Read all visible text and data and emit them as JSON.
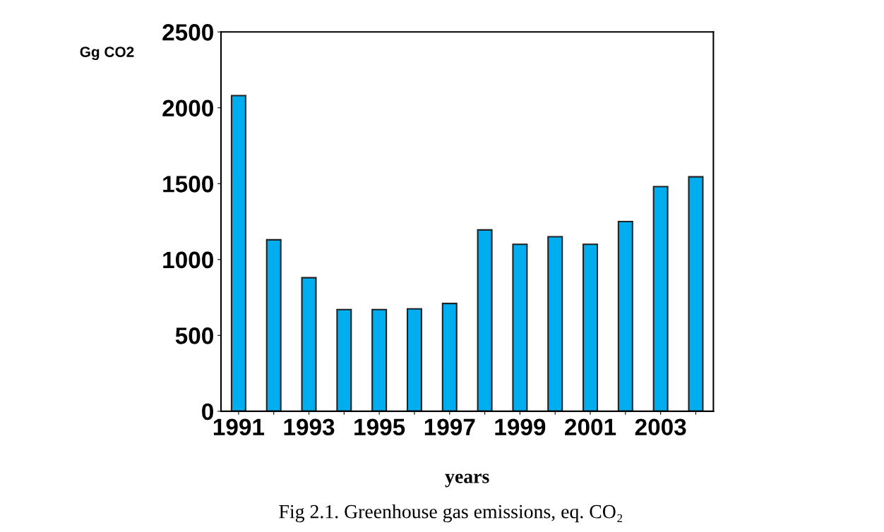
{
  "chart_data": {
    "type": "bar",
    "categories": [
      "1991",
      null,
      "1993",
      null,
      "1995",
      null,
      "1997",
      null,
      "1999",
      null,
      "2001",
      null,
      "2003",
      null
    ],
    "values": [
      2080,
      1130,
      880,
      670,
      670,
      675,
      710,
      1195,
      1100,
      1150,
      1100,
      1250,
      1480,
      1545
    ],
    "color": "#00aeef",
    "ylabel": "Gg CO2",
    "xlabel": "years",
    "annotations": [
      "Fig 2.1. Greenhouse gas emissions, eq. CO₂"
    ],
    "ylim": [
      0,
      2500
    ],
    "yticks": [
      0,
      500,
      1000,
      1500,
      2000,
      2500
    ],
    "grid": false,
    "legend": false
  }
}
